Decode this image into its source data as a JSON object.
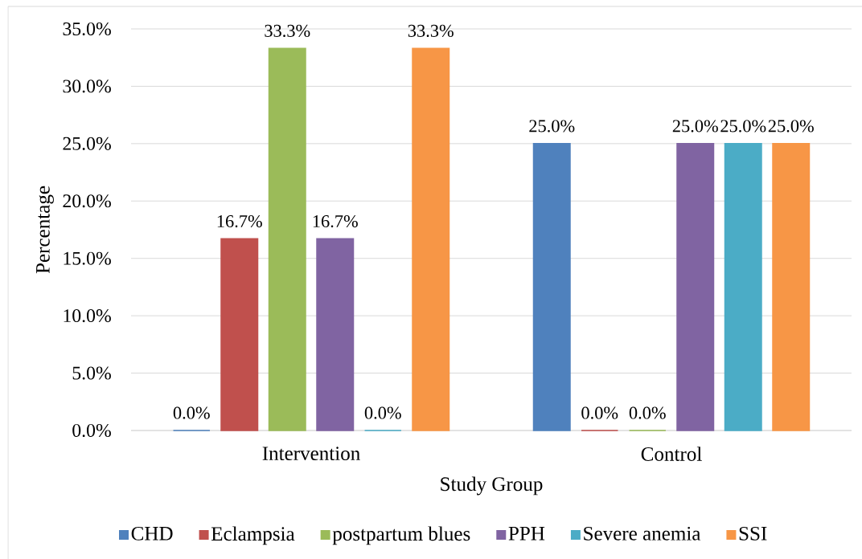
{
  "chart_data": {
    "type": "bar",
    "xlabel": "Study Group",
    "ylabel": "Percentage",
    "categories": [
      "Intervention",
      "Control"
    ],
    "series": [
      {
        "name": "CHD",
        "color": "#4f81bd",
        "values": [
          0,
          25
        ],
        "value_labels": [
          "0.0%",
          "25.0%"
        ]
      },
      {
        "name": "Eclampsia",
        "color": "#c0504d",
        "values": [
          16.7,
          0
        ],
        "value_labels": [
          "16.7%",
          "0.0%"
        ]
      },
      {
        "name": "postpartum blues",
        "color": "#9bbb59",
        "values": [
          33.3,
          0
        ],
        "value_labels": [
          "33.3%",
          "0.0%"
        ]
      },
      {
        "name": "PPH",
        "color": "#8064a2",
        "values": [
          16.7,
          25
        ],
        "value_labels": [
          "16.7%",
          "25.0%"
        ]
      },
      {
        "name": "Severe anemia",
        "color": "#4bacc6",
        "values": [
          0,
          25
        ],
        "value_labels": [
          "0.0%",
          "25.0%"
        ]
      },
      {
        "name": "SSI",
        "color": "#f79646",
        "values": [
          33.3,
          25
        ],
        "value_labels": [
          "33.3%",
          "25.0%"
        ]
      }
    ],
    "ylim": [
      0,
      35
    ],
    "yticks": [
      {
        "value": 0,
        "label": "0.0%"
      },
      {
        "value": 5,
        "label": "5.0%"
      },
      {
        "value": 10,
        "label": "10.0%"
      },
      {
        "value": 15,
        "label": "15.0%"
      },
      {
        "value": 20,
        "label": "20.0%"
      },
      {
        "value": 25,
        "label": "25.0%"
      },
      {
        "value": 30,
        "label": "30.0%"
      },
      {
        "value": 35,
        "label": "35.0%"
      }
    ],
    "grid": "y",
    "legend": "bottom"
  }
}
